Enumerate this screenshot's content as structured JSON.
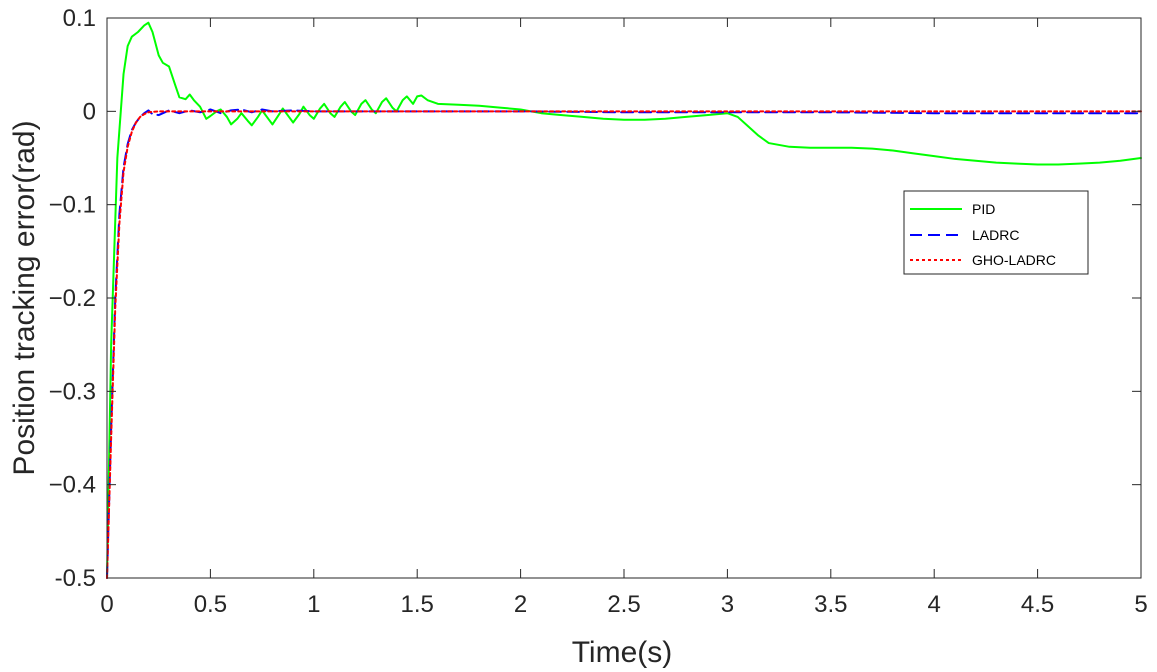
{
  "chart_data": {
    "type": "line",
    "title": "",
    "xlabel": "Time(s)",
    "ylabel": "Position tracking error(rad)",
    "xlim": [
      0,
      5
    ],
    "ylim": [
      -0.5,
      0.1
    ],
    "xticks": [
      0,
      0.5,
      1,
      1.5,
      2,
      2.5,
      3,
      3.5,
      4,
      4.5,
      5
    ],
    "xtick_labels": [
      "0",
      "0.5",
      "1",
      "1.5",
      "2",
      "2.5",
      "3",
      "3.5",
      "4",
      "4.5",
      "5"
    ],
    "yticks": [
      0.1,
      0,
      -0.1,
      -0.2,
      -0.3,
      -0.4,
      -0.5
    ],
    "ytick_labels": [
      "0.1",
      "0",
      "−0.1",
      "−0.2",
      "−0.3",
      "−0.4",
      "-0.5"
    ],
    "grid": false,
    "legend_position": "right",
    "series": [
      {
        "name": "PID",
        "color": "#00ff00",
        "style": "solid",
        "x": [
          0,
          0.02,
          0.05,
          0.08,
          0.1,
          0.12,
          0.15,
          0.18,
          0.2,
          0.22,
          0.25,
          0.27,
          0.3,
          0.33,
          0.35,
          0.38,
          0.4,
          0.42,
          0.45,
          0.48,
          0.5,
          0.53,
          0.55,
          0.58,
          0.6,
          0.63,
          0.65,
          0.68,
          0.7,
          0.73,
          0.75,
          0.78,
          0.8,
          0.83,
          0.85,
          0.88,
          0.9,
          0.93,
          0.95,
          0.98,
          1.0,
          1.03,
          1.05,
          1.08,
          1.1,
          1.13,
          1.15,
          1.18,
          1.2,
          1.23,
          1.25,
          1.28,
          1.3,
          1.33,
          1.35,
          1.38,
          1.4,
          1.43,
          1.45,
          1.48,
          1.5,
          1.52,
          1.55,
          1.6,
          1.7,
          1.8,
          1.9,
          2.0,
          2.1,
          2.2,
          2.3,
          2.4,
          2.5,
          2.6,
          2.7,
          2.8,
          2.9,
          3.0,
          3.05,
          3.1,
          3.15,
          3.2,
          3.3,
          3.4,
          3.5,
          3.6,
          3.7,
          3.8,
          3.9,
          4.0,
          4.1,
          4.2,
          4.3,
          4.4,
          4.5,
          4.6,
          4.7,
          4.8,
          4.9,
          5.0
        ],
        "y": [
          -0.5,
          -0.25,
          -0.05,
          0.04,
          0.07,
          0.08,
          0.085,
          0.092,
          0.095,
          0.085,
          0.06,
          0.052,
          0.048,
          0.028,
          0.015,
          0.013,
          0.018,
          0.012,
          0.005,
          -0.008,
          -0.005,
          0.0,
          0.002,
          -0.006,
          -0.014,
          -0.008,
          -0.002,
          -0.01,
          -0.015,
          -0.006,
          0.001,
          -0.008,
          -0.014,
          -0.004,
          0.003,
          -0.006,
          -0.012,
          -0.003,
          0.005,
          -0.004,
          -0.008,
          0.003,
          0.008,
          -0.002,
          -0.006,
          0.005,
          0.01,
          0.0,
          -0.004,
          0.008,
          0.012,
          0.002,
          -0.002,
          0.01,
          0.014,
          0.004,
          0.0,
          0.012,
          0.016,
          0.008,
          0.016,
          0.017,
          0.012,
          0.008,
          0.007,
          0.006,
          0.004,
          0.002,
          -0.002,
          -0.004,
          -0.006,
          -0.008,
          -0.009,
          -0.009,
          -0.008,
          -0.006,
          -0.004,
          -0.002,
          -0.006,
          -0.016,
          -0.026,
          -0.034,
          -0.038,
          -0.039,
          -0.039,
          -0.039,
          -0.04,
          -0.042,
          -0.045,
          -0.048,
          -0.051,
          -0.053,
          -0.055,
          -0.056,
          -0.057,
          -0.057,
          -0.056,
          -0.055,
          -0.053,
          -0.05
        ]
      },
      {
        "name": "LADRC",
        "color": "#0000ff",
        "style": "dashed",
        "x": [
          0,
          0.02,
          0.04,
          0.06,
          0.08,
          0.1,
          0.12,
          0.14,
          0.16,
          0.18,
          0.2,
          0.22,
          0.25,
          0.3,
          0.35,
          0.4,
          0.45,
          0.5,
          0.55,
          0.6,
          0.65,
          0.7,
          0.75,
          0.8,
          0.9,
          1.0,
          1.1,
          1.2,
          1.3,
          1.4,
          1.5,
          2.0,
          2.5,
          3.0,
          3.5,
          4.0,
          4.5,
          5.0
        ],
        "y": [
          -0.5,
          -0.34,
          -0.2,
          -0.11,
          -0.06,
          -0.035,
          -0.02,
          -0.012,
          -0.006,
          -0.002,
          0.001,
          -0.003,
          -0.004,
          0.001,
          -0.002,
          0.001,
          -0.001,
          0.002,
          -0.002,
          0.001,
          0.002,
          -0.001,
          0.002,
          0.0,
          0.001,
          0.0,
          0.0,
          0.0,
          0.0,
          0.0,
          0.0,
          0.0,
          -0.001,
          -0.001,
          -0.001,
          -0.002,
          -0.002,
          -0.002
        ]
      },
      {
        "name": "GHO-LADRC",
        "color": "#ff0000",
        "style": "dotted",
        "x": [
          0,
          0.02,
          0.04,
          0.06,
          0.08,
          0.1,
          0.12,
          0.14,
          0.16,
          0.18,
          0.2,
          0.25,
          0.3,
          0.4,
          0.5,
          0.7,
          1.0,
          1.5,
          2.0,
          2.5,
          3.0,
          3.5,
          4.0,
          4.5,
          5.0
        ],
        "y": [
          -0.5,
          -0.35,
          -0.21,
          -0.12,
          -0.065,
          -0.038,
          -0.022,
          -0.012,
          -0.006,
          -0.003,
          -0.001,
          0.0,
          0.0,
          0.0,
          0.0,
          0.0,
          0.0,
          0.0,
          0.0,
          0.0,
          0.0,
          0.0,
          0.0,
          0.0,
          0.0
        ]
      }
    ]
  }
}
